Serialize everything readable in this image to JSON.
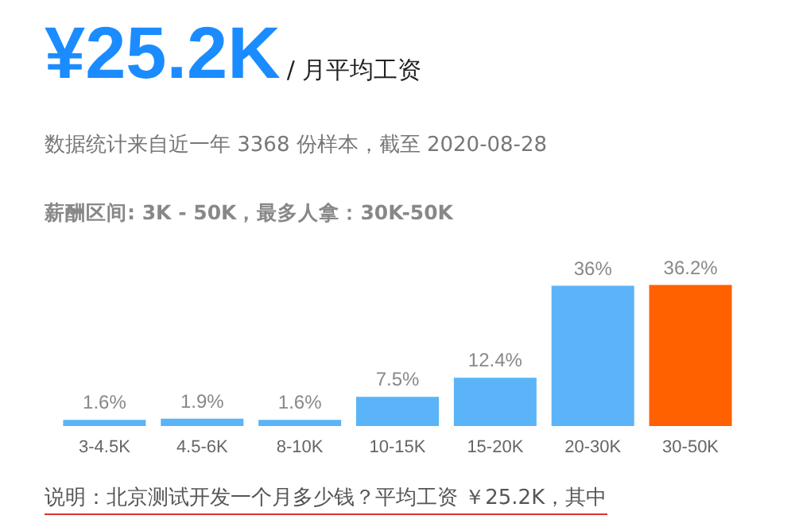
{
  "chart_data": {
    "type": "bar",
    "title": "¥25.2K",
    "subtitle": "/ 月平均工资",
    "annotations": [
      "数据统计来自近一年 3368 份样本，截至 2020-08-28",
      "薪酬区间: 3K - 50K，最多人拿：30K-50K",
      "说明：北京测试开发一个月多少钱？平均工资 ￥25.2K，其中"
    ],
    "categories": [
      "3-4.5K",
      "4.5-6K",
      "8-10K",
      "10-15K",
      "15-20K",
      "20-30K",
      "30-50K"
    ],
    "values": [
      1.6,
      1.9,
      1.6,
      7.5,
      12.4,
      36,
      36.2
    ],
    "value_labels": [
      "1.6%",
      "1.9%",
      "1.6%",
      "7.5%",
      "12.4%",
      "36%",
      "36.2%"
    ],
    "colors": [
      "#5ab4f7",
      "#5ab4f7",
      "#5ab4f7",
      "#5ab4f7",
      "#5ab4f7",
      "#5ab4f7",
      "#ff6000"
    ]
  }
}
